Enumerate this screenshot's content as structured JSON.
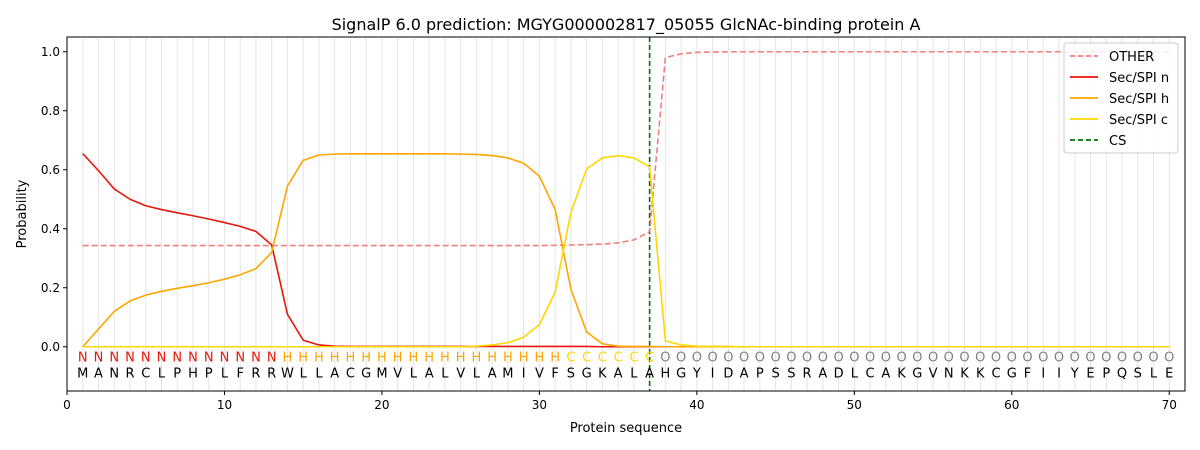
{
  "chart_data": {
    "type": "line",
    "title": "SignalP 6.0 prediction: MGYG000002817_05055 GlcNAc-binding protein A",
    "xlabel": "Protein sequence",
    "ylabel": "Probability",
    "xlim": [
      0,
      71
    ],
    "ylim": [
      -0.15,
      1.05
    ],
    "xticks": [
      0,
      10,
      20,
      30,
      40,
      50,
      60,
      70
    ],
    "yticks": [
      0.0,
      0.2,
      0.4,
      0.6,
      0.8,
      1.0
    ],
    "ytick_labels": [
      "0.0",
      "0.2",
      "0.4",
      "0.6",
      "0.8",
      "1.0"
    ],
    "x": [
      1,
      2,
      3,
      4,
      5,
      6,
      7,
      8,
      9,
      10,
      11,
      12,
      13,
      14,
      15,
      16,
      17,
      18,
      19,
      20,
      21,
      22,
      23,
      24,
      25,
      26,
      27,
      28,
      29,
      30,
      31,
      32,
      33,
      34,
      35,
      36,
      37,
      38,
      39,
      40,
      41,
      42,
      43,
      44,
      45,
      46,
      47,
      48,
      49,
      50,
      51,
      52,
      53,
      54,
      55,
      56,
      57,
      58,
      59,
      60,
      61,
      62,
      63,
      64,
      65,
      66,
      67,
      68,
      69,
      70
    ],
    "series": [
      {
        "name": "OTHER",
        "color": "#f08080",
        "dashed": true,
        "values": [
          0.343,
          0.343,
          0.343,
          0.343,
          0.343,
          0.343,
          0.343,
          0.343,
          0.343,
          0.343,
          0.343,
          0.343,
          0.343,
          0.343,
          0.343,
          0.343,
          0.343,
          0.343,
          0.343,
          0.343,
          0.343,
          0.343,
          0.343,
          0.343,
          0.343,
          0.343,
          0.343,
          0.343,
          0.343,
          0.343,
          0.344,
          0.345,
          0.346,
          0.348,
          0.352,
          0.362,
          0.39,
          0.98,
          0.993,
          0.998,
          0.999,
          1.0,
          1.0,
          1.0,
          1.0,
          1.0,
          1.0,
          1.0,
          1.0,
          1.0,
          1.0,
          1.0,
          1.0,
          1.0,
          1.0,
          1.0,
          1.0,
          1.0,
          1.0,
          1.0,
          1.0,
          1.0,
          1.0,
          1.0,
          1.0,
          1.0,
          1.0,
          1.0,
          1.0,
          1.0
        ]
      },
      {
        "name": "Sec/SPI n",
        "color": "#e8160b",
        "dashed": false,
        "values": [
          0.655,
          0.597,
          0.535,
          0.5,
          0.478,
          0.465,
          0.454,
          0.444,
          0.433,
          0.421,
          0.408,
          0.391,
          0.345,
          0.11,
          0.022,
          0.006,
          0.002,
          0.001,
          0.001,
          0.001,
          0.001,
          0.001,
          0.001,
          0.001,
          0.001,
          0.001,
          0.001,
          0.001,
          0.001,
          0.001,
          0.001,
          0.001,
          0.001,
          0.0,
          0.0,
          0.0,
          0.0,
          0.0,
          0.0,
          0.0,
          0.0,
          0.0,
          0.0,
          0.0,
          0.0,
          0.0,
          0.0,
          0.0,
          0.0,
          0.0,
          0.0,
          0.0,
          0.0,
          0.0,
          0.0,
          0.0,
          0.0,
          0.0,
          0.0,
          0.0,
          0.0,
          0.0,
          0.0,
          0.0,
          0.0,
          0.0,
          0.0,
          0.0,
          0.0,
          0.0
        ]
      },
      {
        "name": "Sec/SPI h",
        "color": "#ffa500",
        "dashed": false,
        "values": [
          0.0,
          0.06,
          0.12,
          0.155,
          0.175,
          0.188,
          0.198,
          0.207,
          0.217,
          0.229,
          0.244,
          0.265,
          0.32,
          0.545,
          0.632,
          0.65,
          0.653,
          0.654,
          0.654,
          0.654,
          0.654,
          0.654,
          0.654,
          0.654,
          0.653,
          0.652,
          0.648,
          0.64,
          0.622,
          0.578,
          0.465,
          0.195,
          0.05,
          0.01,
          0.002,
          0.001,
          0.001,
          0.0,
          0.0,
          0.0,
          0.0,
          0.0,
          0.0,
          0.0,
          0.0,
          0.0,
          0.0,
          0.0,
          0.0,
          0.0,
          0.0,
          0.0,
          0.0,
          0.0,
          0.0,
          0.0,
          0.0,
          0.0,
          0.0,
          0.0,
          0.0,
          0.0,
          0.0,
          0.0,
          0.0,
          0.0,
          0.0,
          0.0,
          0.0,
          0.0
        ]
      },
      {
        "name": "Sec/SPI c",
        "color": "#ffd700",
        "dashed": false,
        "values": [
          0.0,
          0.0,
          0.0,
          0.0,
          0.0,
          0.0,
          0.0,
          0.0,
          0.0,
          0.0,
          0.0,
          0.0,
          0.0,
          0.0,
          0.0,
          0.0,
          0.0,
          0.0,
          0.0,
          0.0,
          0.0,
          0.0,
          0.0,
          0.0,
          0.0,
          0.002,
          0.006,
          0.014,
          0.032,
          0.075,
          0.185,
          0.455,
          0.603,
          0.64,
          0.648,
          0.64,
          0.61,
          0.02,
          0.006,
          0.002,
          0.001,
          0.001,
          0.0,
          0.0,
          0.0,
          0.0,
          0.0,
          0.0,
          0.0,
          0.0,
          0.0,
          0.0,
          0.0,
          0.0,
          0.0,
          0.0,
          0.0,
          0.0,
          0.0,
          0.0,
          0.0,
          0.0,
          0.0,
          0.0,
          0.0,
          0.0,
          0.0,
          0.0,
          0.0,
          0.0
        ]
      }
    ],
    "cs": {
      "name": "CS",
      "x": 37,
      "color": "#007000"
    },
    "legend_position": "top-right",
    "grid": "vertical",
    "sequence": [
      "M",
      "A",
      "N",
      "R",
      "C",
      "L",
      "P",
      "H",
      "P",
      "L",
      "F",
      "R",
      "R",
      "W",
      "L",
      "L",
      "A",
      "C",
      "G",
      "M",
      "V",
      "L",
      "A",
      "L",
      "V",
      "L",
      "A",
      "M",
      "I",
      "V",
      "F",
      "S",
      "G",
      "K",
      "A",
      "L",
      "A",
      "H",
      "G",
      "Y",
      "I",
      "D",
      "A",
      "P",
      "S",
      "S",
      "R",
      "A",
      "D",
      "L",
      "C",
      "A",
      "K",
      "G",
      "V",
      "N",
      "K",
      "K",
      "C",
      "G",
      "F",
      "I",
      "I",
      "Y",
      "E",
      "P",
      "Q",
      "S",
      "L",
      "E"
    ],
    "labels": [
      "N",
      "N",
      "N",
      "N",
      "N",
      "N",
      "N",
      "N",
      "N",
      "N",
      "N",
      "N",
      "N",
      "H",
      "H",
      "H",
      "H",
      "H",
      "H",
      "H",
      "H",
      "H",
      "H",
      "H",
      "H",
      "H",
      "H",
      "H",
      "H",
      "H",
      "H",
      "C",
      "C",
      "C",
      "C",
      "C",
      "C",
      "O",
      "O",
      "O",
      "O",
      "O",
      "O",
      "O",
      "O",
      "O",
      "O",
      "O",
      "O",
      "O",
      "O",
      "O",
      "O",
      "O",
      "O",
      "O",
      "O",
      "O",
      "O",
      "O",
      "O",
      "O",
      "O",
      "O",
      "O",
      "O",
      "O",
      "O",
      "O",
      "O"
    ],
    "label_colors": {
      "N": "#e8160b",
      "H": "#ffa500",
      "C": "#ffd700",
      "O": "#808080"
    }
  }
}
